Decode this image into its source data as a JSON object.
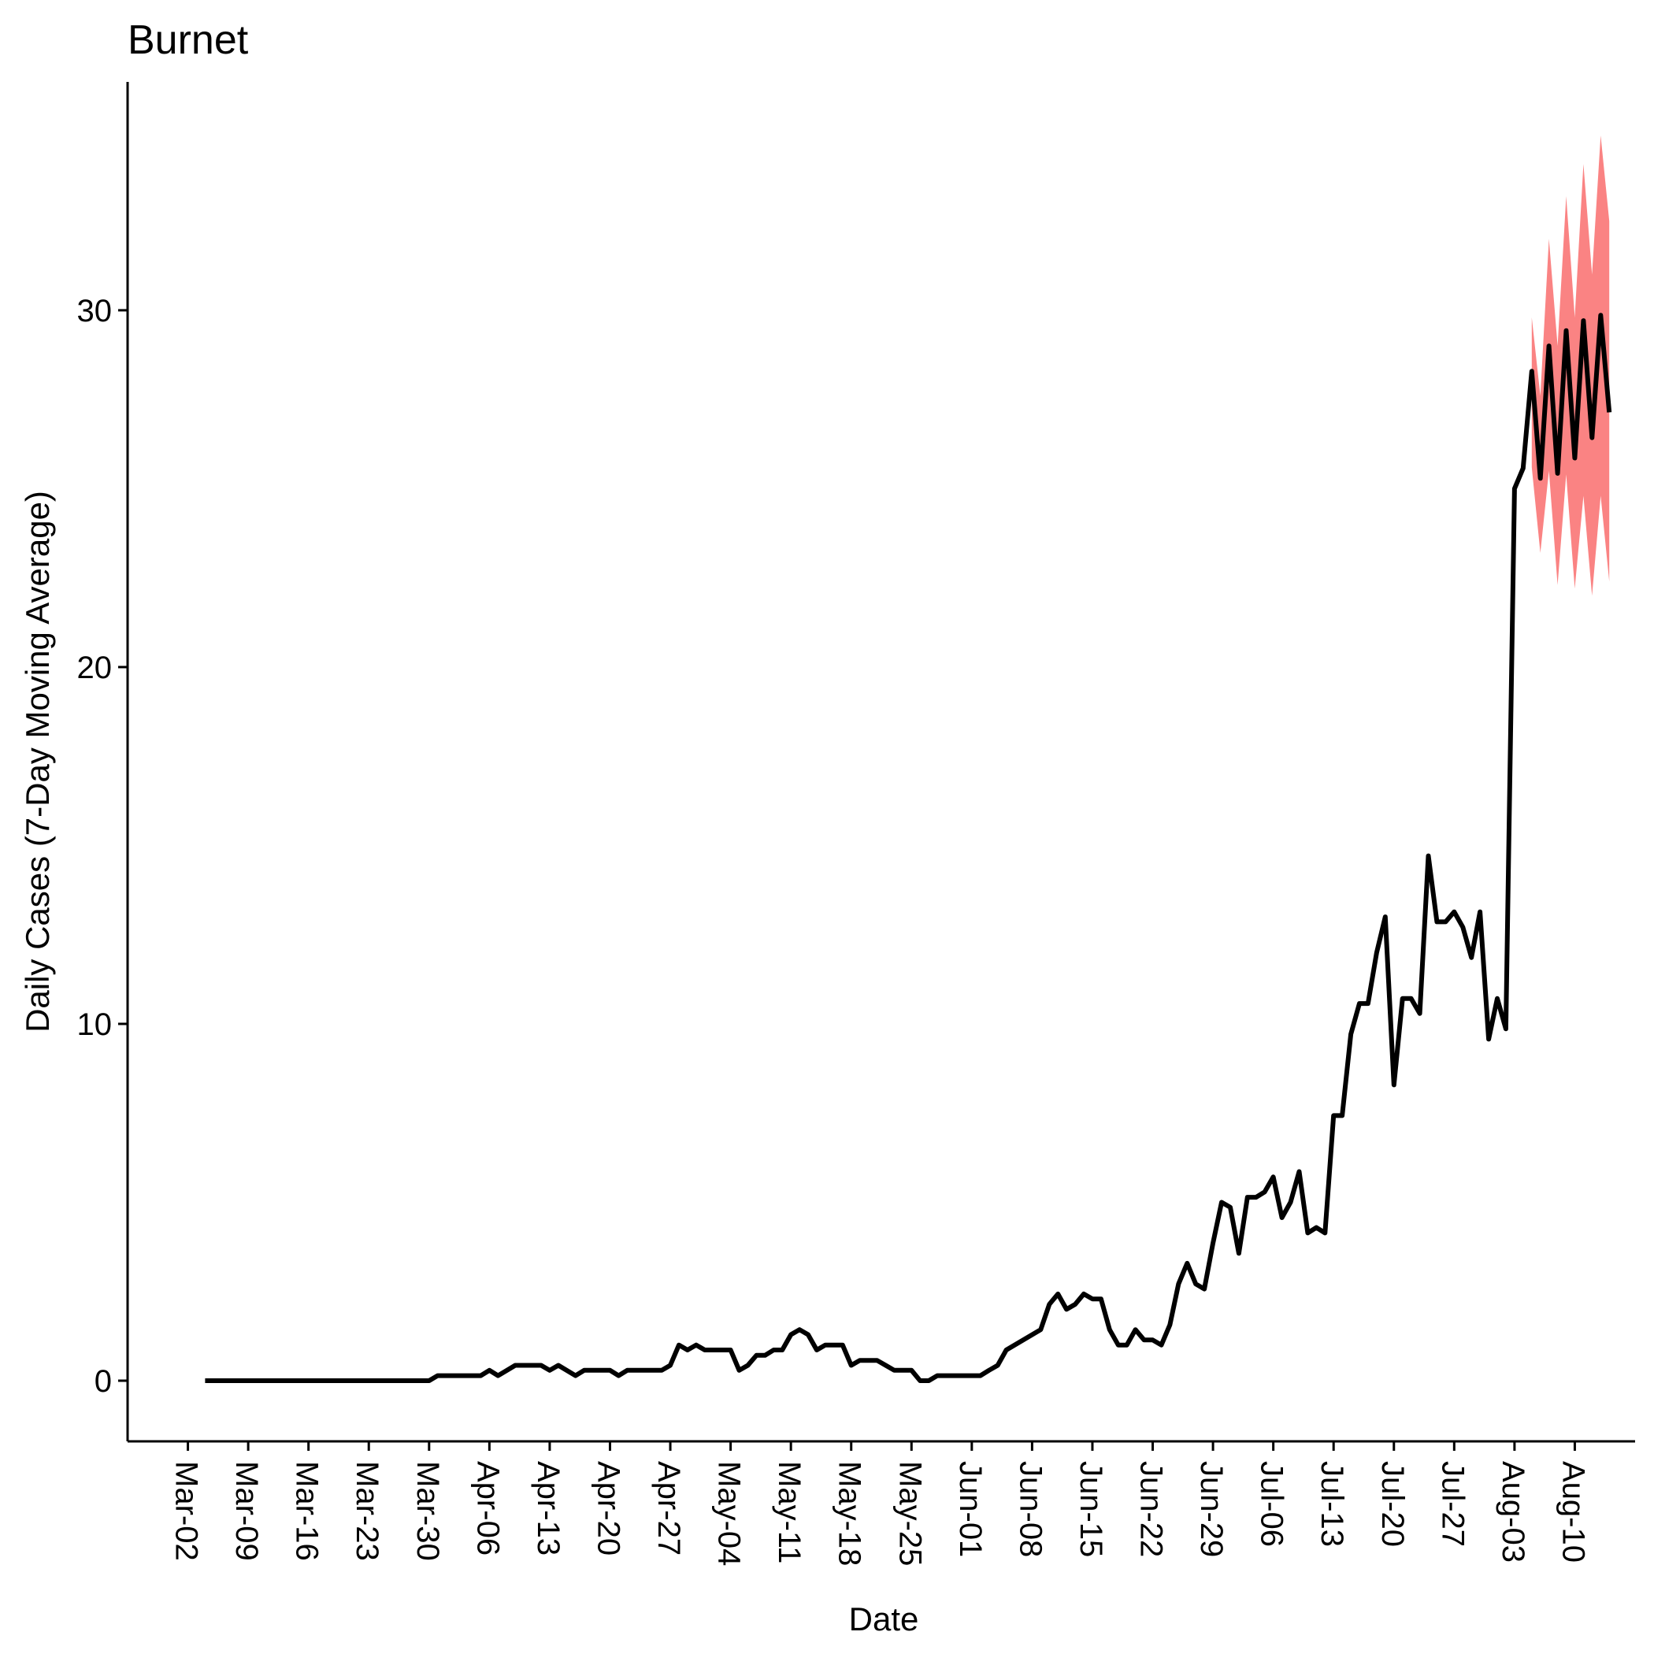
{
  "chart_data": {
    "type": "line",
    "title": "Burnet",
    "xlabel": "Date",
    "ylabel": "Daily Cases (7-Day Moving Average)",
    "x_tick_labels": [
      "Mar-02",
      "Mar-09",
      "Mar-16",
      "Mar-23",
      "Mar-30",
      "Apr-06",
      "Apr-13",
      "Apr-20",
      "Apr-27",
      "May-04",
      "May-11",
      "May-18",
      "May-25",
      "Jun-01",
      "Jun-08",
      "Jun-15",
      "Jun-22",
      "Jun-29",
      "Jul-06",
      "Jul-13",
      "Jul-20",
      "Jul-27",
      "Aug-03",
      "Aug-10"
    ],
    "y_ticks": [
      0,
      10,
      20,
      30
    ],
    "ylim": [
      -1.7,
      36.4
    ],
    "xlim": [
      "2020-02-24",
      "2020-08-17"
    ],
    "grid": false,
    "legend": "none",
    "colors": {
      "observed": "#000000",
      "band": "#fa8383"
    },
    "observed": [
      [
        "2020-03-04",
        0
      ],
      [
        "2020-03-30",
        0
      ],
      [
        "2020-03-31",
        0.14
      ],
      [
        "2020-04-05",
        0.14
      ],
      [
        "2020-04-06",
        0.29
      ],
      [
        "2020-04-07",
        0.14
      ],
      [
        "2020-04-09",
        0.43
      ],
      [
        "2020-04-12",
        0.43
      ],
      [
        "2020-04-13",
        0.29
      ],
      [
        "2020-04-14",
        0.43
      ],
      [
        "2020-04-16",
        0.14
      ],
      [
        "2020-04-17",
        0.29
      ],
      [
        "2020-04-20",
        0.29
      ],
      [
        "2020-04-21",
        0.14
      ],
      [
        "2020-04-22",
        0.29
      ],
      [
        "2020-04-26",
        0.29
      ],
      [
        "2020-04-27",
        0.43
      ],
      [
        "2020-04-28",
        1
      ],
      [
        "2020-04-29",
        0.86
      ],
      [
        "2020-04-30",
        1
      ],
      [
        "2020-05-01",
        0.86
      ],
      [
        "2020-05-04",
        0.86
      ],
      [
        "2020-05-05",
        0.29
      ],
      [
        "2020-05-06",
        0.43
      ],
      [
        "2020-05-07",
        0.71
      ],
      [
        "2020-05-08",
        0.71
      ],
      [
        "2020-05-09",
        0.86
      ],
      [
        "2020-05-10",
        0.86
      ],
      [
        "2020-05-11",
        1.29
      ],
      [
        "2020-05-12",
        1.43
      ],
      [
        "2020-05-13",
        1.29
      ],
      [
        "2020-05-14",
        0.86
      ],
      [
        "2020-05-15",
        1
      ],
      [
        "2020-05-17",
        1
      ],
      [
        "2020-05-18",
        0.43
      ],
      [
        "2020-05-19",
        0.57
      ],
      [
        "2020-05-21",
        0.57
      ],
      [
        "2020-05-22",
        0.43
      ],
      [
        "2020-05-23",
        0.29
      ],
      [
        "2020-05-25",
        0.29
      ],
      [
        "2020-05-26",
        0
      ],
      [
        "2020-05-27",
        0
      ],
      [
        "2020-05-28",
        0.14
      ],
      [
        "2020-06-02",
        0.14
      ],
      [
        "2020-06-03",
        0.29
      ],
      [
        "2020-06-04",
        0.43
      ],
      [
        "2020-06-05",
        0.86
      ],
      [
        "2020-06-09",
        1.43
      ],
      [
        "2020-06-10",
        2.14
      ],
      [
        "2020-06-11",
        2.43
      ],
      [
        "2020-06-12",
        2
      ],
      [
        "2020-06-13",
        2.14
      ],
      [
        "2020-06-14",
        2.43
      ],
      [
        "2020-06-15",
        2.29
      ],
      [
        "2020-06-16",
        2.29
      ],
      [
        "2020-06-17",
        1.43
      ],
      [
        "2020-06-18",
        1
      ],
      [
        "2020-06-19",
        1
      ],
      [
        "2020-06-20",
        1.43
      ],
      [
        "2020-06-21",
        1.14
      ],
      [
        "2020-06-22",
        1.14
      ],
      [
        "2020-06-23",
        1
      ],
      [
        "2020-06-24",
        1.57
      ],
      [
        "2020-06-25",
        2.71
      ],
      [
        "2020-06-26",
        3.29
      ],
      [
        "2020-06-27",
        2.71
      ],
      [
        "2020-06-28",
        2.57
      ],
      [
        "2020-06-29",
        3.86
      ],
      [
        "2020-06-30",
        5
      ],
      [
        "2020-07-01",
        4.86
      ],
      [
        "2020-07-02",
        3.57
      ],
      [
        "2020-07-03",
        5.14
      ],
      [
        "2020-07-04",
        5.14
      ],
      [
        "2020-07-05",
        5.29
      ],
      [
        "2020-07-06",
        5.71
      ],
      [
        "2020-07-07",
        4.57
      ],
      [
        "2020-07-08",
        5
      ],
      [
        "2020-07-09",
        5.86
      ],
      [
        "2020-07-10",
        4.14
      ],
      [
        "2020-07-11",
        4.29
      ],
      [
        "2020-07-12",
        4.14
      ],
      [
        "2020-07-13",
        7.43
      ],
      [
        "2020-07-14",
        7.43
      ],
      [
        "2020-07-15",
        9.71
      ],
      [
        "2020-07-16",
        10.57
      ],
      [
        "2020-07-17",
        10.57
      ],
      [
        "2020-07-18",
        12
      ],
      [
        "2020-07-19",
        13
      ],
      [
        "2020-07-20",
        8.29
      ],
      [
        "2020-07-21",
        10.71
      ],
      [
        "2020-07-22",
        10.71
      ],
      [
        "2020-07-23",
        10.29
      ],
      [
        "2020-07-24",
        14.71
      ],
      [
        "2020-07-25",
        12.86
      ],
      [
        "2020-07-26",
        12.86
      ],
      [
        "2020-07-27",
        13.14
      ],
      [
        "2020-07-28",
        12.71
      ],
      [
        "2020-07-29",
        11.86
      ],
      [
        "2020-07-30",
        13.14
      ],
      [
        "2020-07-31",
        9.57
      ],
      [
        "2020-08-01",
        10.71
      ],
      [
        "2020-08-02",
        9.86
      ],
      [
        "2020-08-03",
        25
      ],
      [
        "2020-08-04",
        25.57
      ],
      [
        "2020-08-05",
        28.29
      ],
      [
        "2020-08-06",
        25.29
      ],
      [
        "2020-08-07",
        29
      ],
      [
        "2020-08-08",
        25.43
      ],
      [
        "2020-08-09",
        29.43
      ],
      [
        "2020-08-10",
        25.86
      ],
      [
        "2020-08-11",
        29.71
      ],
      [
        "2020-08-12",
        26.43
      ],
      [
        "2020-08-13",
        29.86
      ],
      [
        "2020-08-14",
        27.14
      ]
    ],
    "forecast_band": [
      [
        "2020-08-05",
        25.6,
        29.8
      ],
      [
        "2020-08-06",
        23.2,
        27.6
      ],
      [
        "2020-08-07",
        25.5,
        32.0
      ],
      [
        "2020-08-08",
        22.3,
        29.0
      ],
      [
        "2020-08-09",
        25.4,
        33.2
      ],
      [
        "2020-08-10",
        22.2,
        29.8
      ],
      [
        "2020-08-11",
        24.8,
        34.1
      ],
      [
        "2020-08-12",
        22.0,
        31.0
      ],
      [
        "2020-08-13",
        24.8,
        34.9
      ],
      [
        "2020-08-14",
        22.4,
        32.5
      ]
    ]
  }
}
